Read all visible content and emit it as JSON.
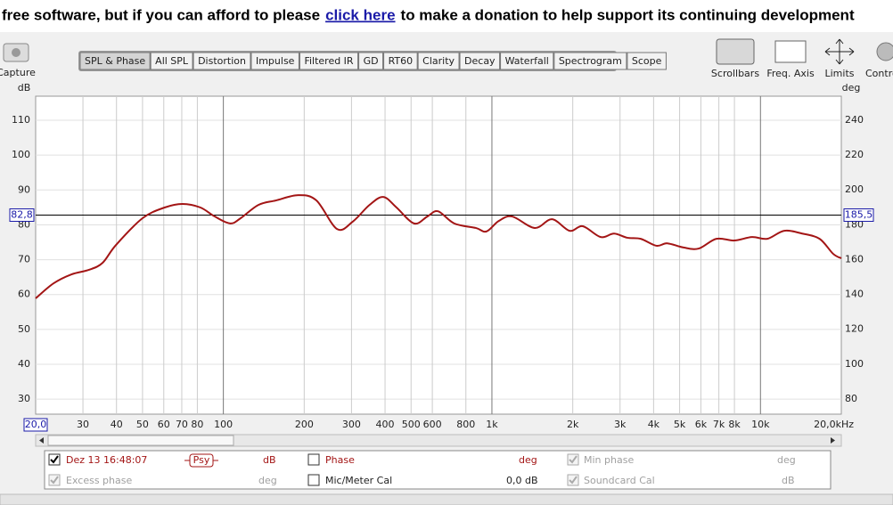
{
  "banner": {
    "before": "free software, but if you can afford to please",
    "link": "click here",
    "after": "to make a donation to help support its continuing development"
  },
  "toolbar": {
    "capture": "Capture",
    "tabs": [
      "SPL & Phase",
      "All SPL",
      "Distortion",
      "Impulse",
      "Filtered IR",
      "GD",
      "RT60",
      "Clarity",
      "Decay",
      "Waterfall",
      "Spectrogram",
      "Scope"
    ],
    "tools": [
      "Scrollbars",
      "Freq. Axis",
      "Limits",
      "Contro"
    ]
  },
  "chart_data": {
    "type": "line",
    "x_scale": "log",
    "xlim": [
      20,
      20000
    ],
    "ylim": [
      25.7,
      116.9
    ],
    "y2lim": [
      71.3,
      253.8
    ],
    "ylabel": "dB",
    "y2label": "deg",
    "grid": true,
    "xticks": [
      {
        "value": 20,
        "label": "20,0"
      },
      30,
      40,
      50,
      60,
      70,
      80,
      100,
      200,
      300,
      400,
      500,
      600,
      800,
      {
        "value": 1000,
        "label": "1k"
      },
      {
        "value": 2000,
        "label": "2k"
      },
      {
        "value": 3000,
        "label": "3k"
      },
      {
        "value": 4000,
        "label": "4k"
      },
      {
        "value": 5000,
        "label": "5k"
      },
      {
        "value": 6000,
        "label": "6k"
      },
      {
        "value": 7000,
        "label": "7k"
      },
      {
        "value": 8000,
        "label": "8k"
      },
      {
        "value": 10000,
        "label": "10k"
      },
      {
        "value": 20000,
        "label": "20,0kHz"
      }
    ],
    "yticks": [
      30,
      40,
      50,
      60,
      70,
      80,
      90,
      100,
      110
    ],
    "y2ticks": [
      80,
      100,
      120,
      140,
      160,
      180,
      200,
      220,
      240
    ],
    "x": [
      20,
      23.3,
      27.2,
      31.6,
      35.5,
      39.8,
      50,
      60.6,
      70.4,
      82,
      92.9,
      106,
      116,
      135,
      157,
      190,
      222,
      265,
      303,
      350,
      394,
      441,
      513,
      575,
      630,
      724,
      871,
      954,
      1060,
      1190,
      1443,
      1675,
      1946,
      2180,
      2540,
      2850,
      3190,
      3580,
      4100,
      4500,
      5170,
      5890,
      6850,
      7980,
      9300,
      10600,
      12260,
      14300,
      16600,
      18640,
      20000
    ],
    "series": [
      {
        "name": "Dez 13 16:48:07",
        "color": "#a31515",
        "values": [
          58.9,
          63.2,
          65.8,
          67.1,
          69.1,
          74.2,
          81.9,
          85,
          86,
          85,
          82.4,
          80.4,
          81.9,
          85.7,
          87,
          88.5,
          87,
          78.8,
          80.9,
          85.7,
          88,
          85,
          80.4,
          82.4,
          83.9,
          80.4,
          79.1,
          78.1,
          81.1,
          82.4,
          79.1,
          81.6,
          78.3,
          79.6,
          76.5,
          77.5,
          76.3,
          76,
          74,
          74.7,
          73.5,
          73.2,
          76,
          75.5,
          76.5,
          76,
          78.3,
          77.5,
          76,
          71.7,
          70.4
        ]
      }
    ],
    "cursor": {
      "value": 82.8,
      "label": "82,8",
      "y2_value": 185.5,
      "y2_label": "185,5"
    }
  },
  "trace_panel": {
    "smoothing": "Psy",
    "spl_unit": "dB",
    "phase": "Phase",
    "phase_unit": "deg",
    "min_phase": "Min phase",
    "min_phase_unit": "deg",
    "excess_phase": "Excess phase",
    "excess_phase_unit": "deg",
    "mic_cal": "Mic/Meter Cal",
    "mic_cal_value": "0,0 dB",
    "soundcard_cal": "Soundcard Cal",
    "soundcard_cal_unit": "dB"
  }
}
